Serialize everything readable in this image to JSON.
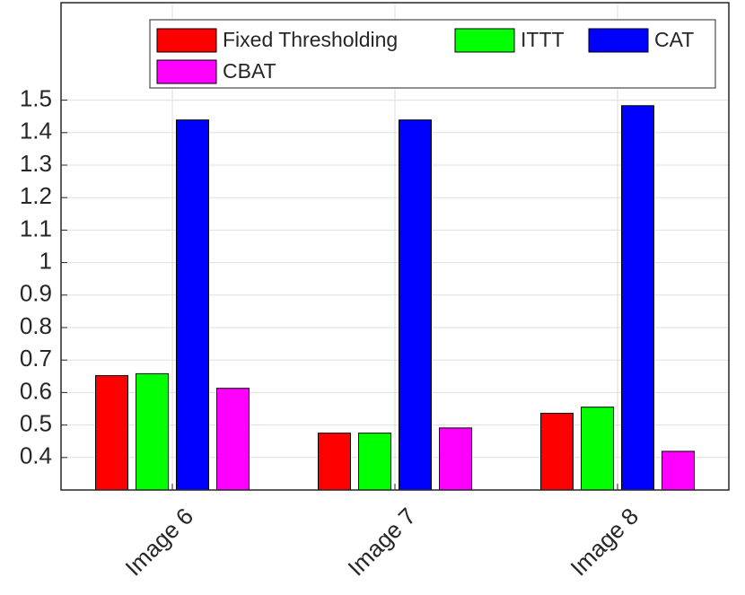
{
  "chart_data": {
    "type": "bar",
    "categories": [
      "Image 6",
      "Image 7",
      "Image 8"
    ],
    "series": [
      {
        "name": "Fixed Thresholding",
        "color": "#ff0000",
        "values": [
          0.652,
          0.475,
          0.536
        ]
      },
      {
        "name": "ITTT",
        "color": "#00ff00",
        "values": [
          0.658,
          0.475,
          0.555
        ]
      },
      {
        "name": "CAT",
        "color": "#0000ff",
        "values": [
          1.439,
          1.439,
          1.483
        ]
      },
      {
        "name": "CBAT",
        "color": "#ff00ff",
        "values": [
          0.613,
          0.491,
          0.419
        ]
      }
    ],
    "ylim": [
      0.3,
      1.8
    ],
    "yticks": [
      0.4,
      0.5,
      0.6,
      0.7,
      0.8,
      0.9,
      1,
      1.1,
      1.2,
      1.3,
      1.4,
      1.5
    ],
    "grid": true,
    "legend": "upper right"
  }
}
